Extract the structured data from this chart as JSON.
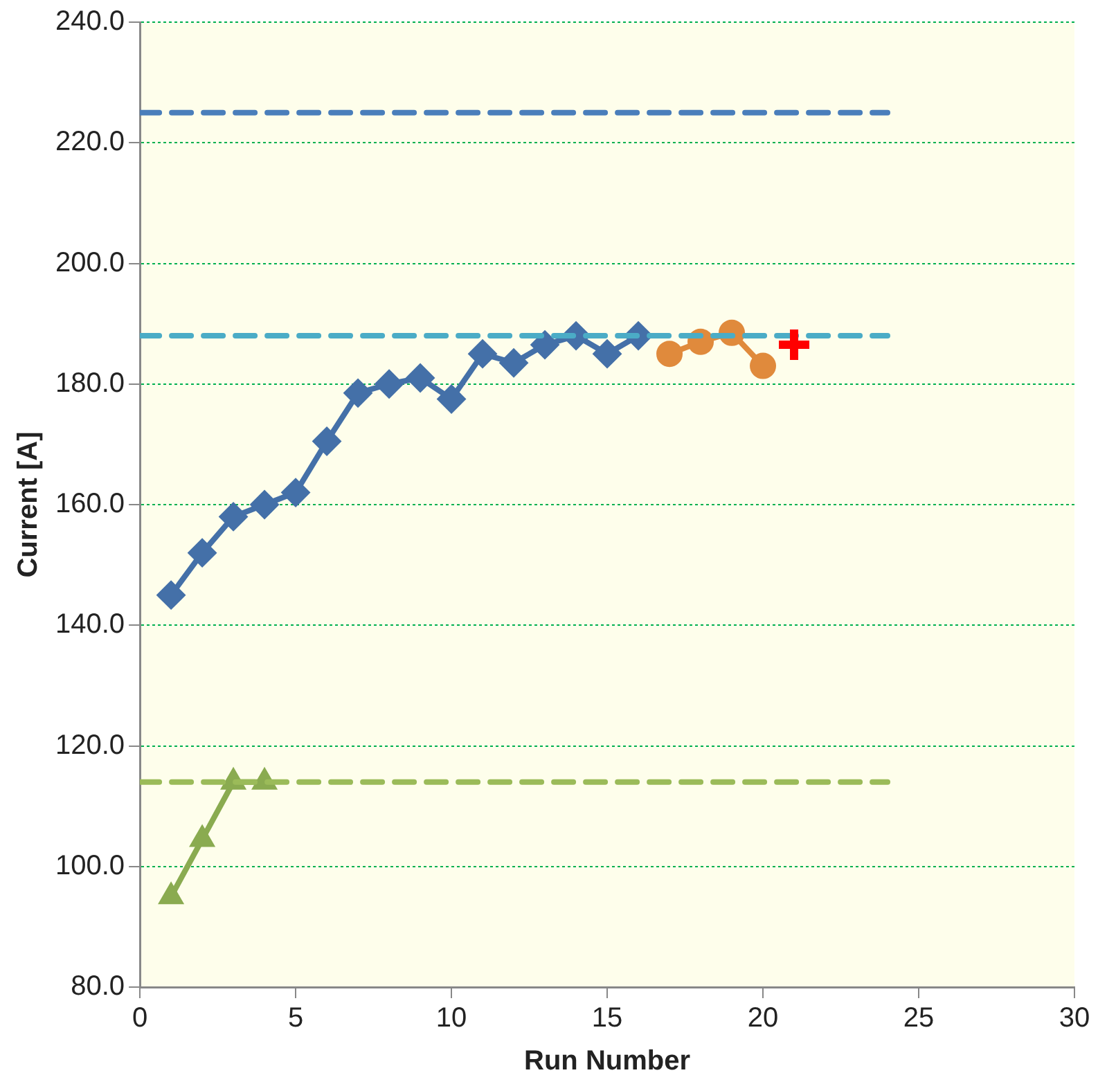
{
  "chart_data": {
    "type": "line",
    "xlabel": "Run Number",
    "ylabel": "Current [A]",
    "xlim": [
      0,
      30
    ],
    "xticks": [
      0,
      5,
      10,
      15,
      20,
      25,
      30
    ],
    "ylim": [
      80,
      240
    ],
    "yticks": [
      {
        "value": 80,
        "label": "80.0"
      },
      {
        "value": 100,
        "label": "100.0"
      },
      {
        "value": 120,
        "label": "120.0"
      },
      {
        "value": 140,
        "label": "140.0"
      },
      {
        "value": 160,
        "label": "160.0"
      },
      {
        "value": 180,
        "label": "180.0"
      },
      {
        "value": 200,
        "label": "200.0"
      },
      {
        "value": 220,
        "label": "220.0"
      },
      {
        "value": 240,
        "label": "240.0"
      }
    ],
    "grid": "y",
    "legend": false,
    "series": [
      {
        "type": "line",
        "color": "#4a7ebb",
        "x": [
          0,
          24
        ],
        "values": [
          225,
          225
        ],
        "marker": "none",
        "line_style": "dashed"
      },
      {
        "type": "line",
        "color": "#4bacc6",
        "x": [
          0,
          24
        ],
        "values": [
          188,
          188
        ],
        "marker": "none",
        "line_style": "dashed"
      },
      {
        "type": "line",
        "color": "#9bbb59",
        "x": [
          0,
          24
        ],
        "values": [
          114,
          114
        ],
        "marker": "none",
        "line_style": "dashed"
      },
      {
        "type": "line",
        "color": "#4470a8",
        "x": [
          1,
          2,
          3,
          4,
          5,
          6,
          7,
          8,
          9,
          10,
          11,
          12,
          13,
          14,
          15,
          16
        ],
        "values": [
          145,
          152,
          158,
          160,
          162,
          170.5,
          178.5,
          180,
          181,
          177.5,
          185,
          183.5,
          186.5,
          188,
          185,
          188
        ],
        "marker": "diamond",
        "line_style": "solid"
      },
      {
        "type": "line",
        "color": "#e08a3c",
        "x": [
          17,
          18,
          19,
          20
        ],
        "values": [
          185,
          187,
          188.5,
          183
        ],
        "marker": "circle",
        "line_style": "solid"
      },
      {
        "type": "scatter",
        "color": "#ff0000",
        "x": [
          21
        ],
        "values": [
          186.5
        ],
        "marker": "cross"
      },
      {
        "type": "line",
        "color": "#8aab50",
        "x": [
          1,
          2,
          3,
          4
        ],
        "values": [
          95,
          104.5,
          114,
          114
        ],
        "marker": "triangle",
        "line_style": "solid"
      }
    ]
  }
}
